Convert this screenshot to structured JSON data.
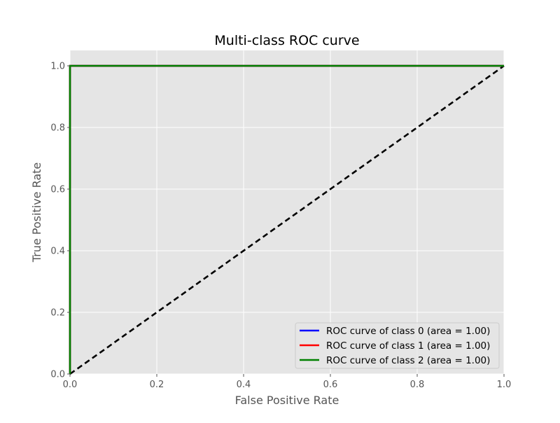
{
  "chart_data": {
    "type": "line",
    "title": "Multi-class ROC curve",
    "xlabel": "False Positive Rate",
    "ylabel": "True Positive Rate",
    "xlim": [
      0.0,
      1.0
    ],
    "ylim": [
      0.0,
      1.05
    ],
    "xticks": [
      0.0,
      0.2,
      0.4,
      0.6,
      0.8,
      1.0
    ],
    "yticks": [
      0.0,
      0.2,
      0.4,
      0.6,
      0.8,
      1.0
    ],
    "xtick_labels": [
      "0.0",
      "0.2",
      "0.4",
      "0.6",
      "0.8",
      "1.0"
    ],
    "ytick_labels": [
      "0.0",
      "0.2",
      "0.4",
      "0.6",
      "0.8",
      "1.0"
    ],
    "grid": true,
    "legend_position": "lower-right",
    "series": [
      {
        "name": "ROC curve of class 0 (area = 1.00)",
        "color": "#0000ff",
        "x": [
          0.0,
          0.0,
          1.0
        ],
        "y": [
          0.0,
          1.0,
          1.0
        ]
      },
      {
        "name": "ROC curve of class 1 (area = 1.00)",
        "color": "#ff0000",
        "x": [
          0.0,
          0.0,
          1.0
        ],
        "y": [
          0.0,
          1.0,
          1.0
        ]
      },
      {
        "name": "ROC curve of class 2 (area = 1.00)",
        "color": "#008000",
        "x": [
          0.0,
          0.0,
          1.0
        ],
        "y": [
          0.0,
          1.0,
          1.0
        ]
      }
    ],
    "reference_line": {
      "color": "#000000",
      "style": "dashed",
      "x": [
        0.0,
        1.0
      ],
      "y": [
        0.0,
        1.0
      ]
    },
    "colors": {
      "plot_background": "#e5e5e5",
      "grid": "#ffffff",
      "tick_text": "#555555"
    }
  }
}
